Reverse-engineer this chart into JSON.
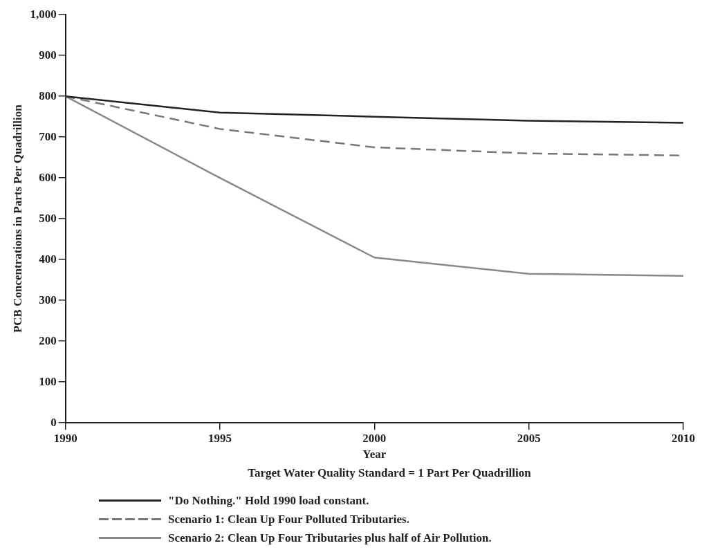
{
  "chart_data": {
    "type": "line",
    "xlabel": "Year",
    "ylabel": "PCB Concentrations in Parts Per Quadrillion",
    "annotations": [
      "Target Water Quality Standard = 1 Part Per Quadrillion"
    ],
    "x": [
      1990,
      1995,
      2000,
      2005,
      2010
    ],
    "xlim": [
      1990,
      2010
    ],
    "xticks": [
      1990,
      1995,
      2000,
      2005,
      2010
    ],
    "ylim": [
      0,
      1000
    ],
    "yticks": [
      0,
      100,
      200,
      300,
      400,
      500,
      600,
      700,
      800,
      900,
      {
        "value": 1000,
        "label": "1,000"
      }
    ],
    "grid": false,
    "legend": "bottom",
    "marker": "none",
    "series": [
      {
        "name": "\"Do Nothing.\" Hold 1990 load constant.",
        "color": "#222222",
        "line_style": "solid",
        "values": [
          800,
          760,
          750,
          740,
          735
        ]
      },
      {
        "name": "Scenario 1: Clean Up Four Polluted Tributaries.",
        "color": "#777777",
        "line_style": "dashed",
        "values": [
          800,
          720,
          675,
          660,
          655
        ]
      },
      {
        "name": "Scenario 2: Clean Up Four Tributaries plus half of Air Pollution.",
        "color": "#888888",
        "line_style": "solid",
        "values": [
          800,
          600,
          405,
          365,
          360
        ]
      }
    ]
  }
}
